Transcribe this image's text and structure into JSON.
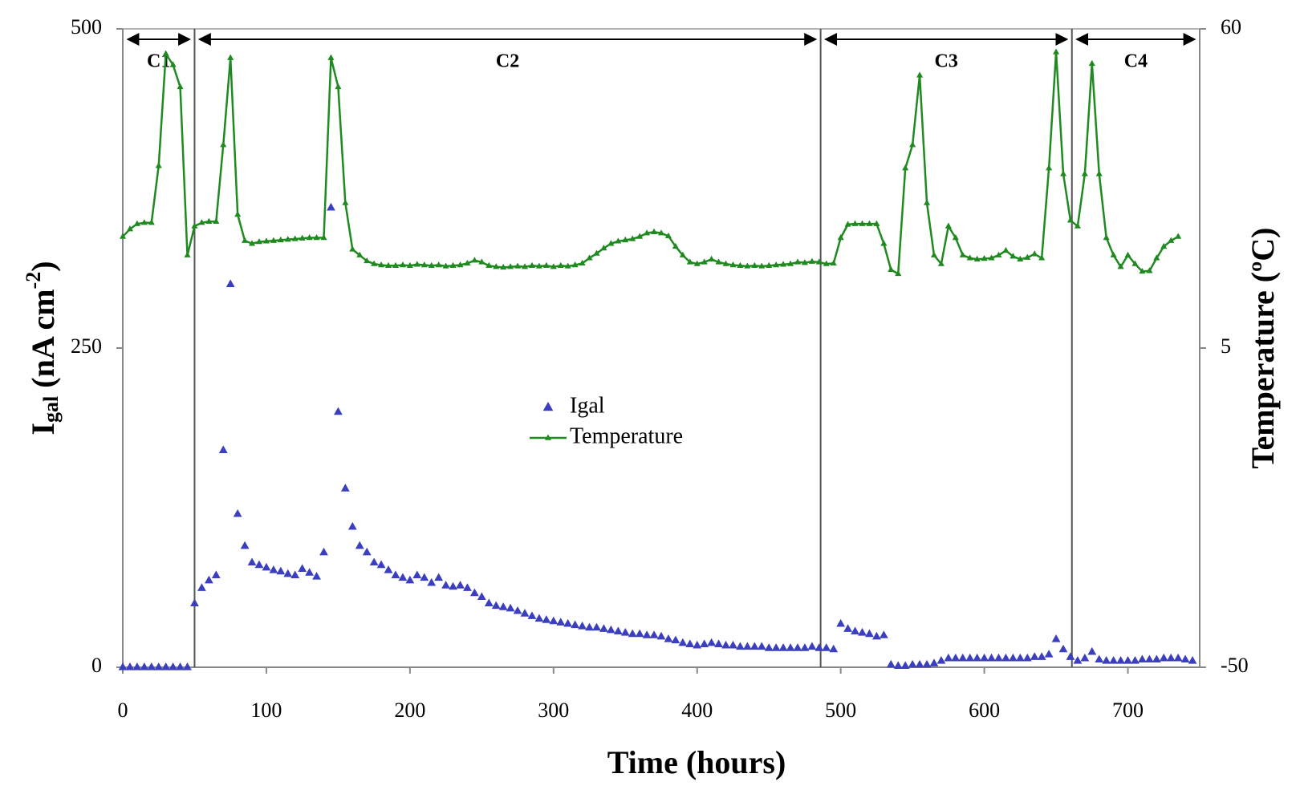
{
  "chart_data": {
    "type": "line",
    "x_label": "Time (hours)",
    "y_label": [
      "I",
      "gal",
      " (nA cm",
      "-2",
      ")"
    ],
    "y2_label": "Temperature (ºC)",
    "xlim": [
      0,
      750
    ],
    "xticks": [
      0,
      100,
      200,
      300,
      400,
      500,
      600,
      700
    ],
    "ylim": [
      0,
      500
    ],
    "yticks": [
      0,
      250,
      500
    ],
    "y2lim": [
      -50,
      60
    ],
    "y2ticks": [
      -50,
      5,
      60
    ],
    "legend": "center",
    "regions": [
      {
        "label": "C1",
        "start": 0,
        "end": 50
      },
      {
        "label": "C2",
        "start": 50,
        "end": 486
      },
      {
        "label": "C3",
        "start": 486,
        "end": 661
      },
      {
        "label": "C4",
        "start": 661,
        "end": 750
      }
    ],
    "x": [
      0,
      5,
      10,
      15,
      20,
      25,
      30,
      35,
      40,
      45,
      50,
      55,
      60,
      65,
      70,
      75,
      80,
      85,
      90,
      95,
      100,
      105,
      110,
      115,
      120,
      125,
      130,
      135,
      140,
      145,
      150,
      155,
      160,
      165,
      170,
      175,
      180,
      185,
      190,
      195,
      200,
      205,
      210,
      215,
      220,
      225,
      230,
      235,
      240,
      245,
      250,
      255,
      260,
      265,
      270,
      275,
      280,
      285,
      290,
      295,
      300,
      305,
      310,
      315,
      320,
      325,
      330,
      335,
      340,
      345,
      350,
      355,
      360,
      365,
      370,
      375,
      380,
      385,
      390,
      395,
      400,
      405,
      410,
      415,
      420,
      425,
      430,
      435,
      440,
      445,
      450,
      455,
      460,
      465,
      470,
      475,
      480,
      485,
      490,
      495,
      500,
      505,
      510,
      515,
      520,
      525,
      530,
      535,
      540,
      545,
      550,
      555,
      560,
      565,
      570,
      575,
      580,
      585,
      590,
      595,
      600,
      605,
      610,
      615,
      620,
      625,
      630,
      635,
      640,
      645,
      650,
      655,
      660,
      665,
      670,
      675,
      680,
      685,
      690,
      695,
      700,
      705,
      710,
      715,
      720,
      725,
      730,
      735,
      740,
      745
    ],
    "series": [
      {
        "name": "Igal",
        "color": "#3b3fbf",
        "marker": "triangle",
        "line": false,
        "values": [
          0,
          0,
          0,
          0,
          0,
          0,
          0,
          0,
          0,
          0,
          50,
          62,
          68,
          72,
          170,
          300,
          120,
          95,
          82,
          80,
          78,
          76,
          75,
          73,
          72,
          77,
          74,
          71,
          90,
          360,
          200,
          140,
          110,
          95,
          90,
          82,
          80,
          76,
          72,
          70,
          68,
          72,
          70,
          66,
          70,
          64,
          63,
          64,
          62,
          58,
          55,
          50,
          48,
          47,
          46,
          44,
          42,
          40,
          38,
          37,
          36,
          35,
          34,
          33,
          32,
          31,
          31,
          30,
          29,
          28,
          27,
          26,
          26,
          25,
          25,
          24,
          22,
          21,
          19,
          18,
          17,
          18,
          19,
          18,
          17,
          17,
          16,
          16,
          16,
          16,
          15,
          15,
          15,
          15,
          15,
          15,
          16,
          15,
          15,
          14,
          34,
          30,
          28,
          27,
          26,
          24,
          25,
          2,
          1,
          1,
          2,
          2,
          2,
          3,
          5,
          7,
          7,
          7,
          7,
          7,
          7,
          7,
          7,
          7,
          7,
          7,
          7,
          8,
          8,
          10,
          22,
          14,
          8,
          5,
          7,
          12,
          6,
          5,
          5,
          5,
          5,
          5,
          6,
          6,
          6,
          7,
          7,
          7,
          6,
          5
        ]
      },
      {
        "name": "Temperature",
        "color": "#1f8a1f",
        "marker": "triangle",
        "line": true,
        "axis": "y2",
        "values": [
          24.2,
          25.5,
          26.4,
          26.6,
          26.6,
          36.4,
          55.7,
          53.8,
          50,
          21,
          26,
          26.6,
          26.8,
          26.8,
          40,
          55,
          28,
          23.5,
          23.0,
          23.3,
          23.4,
          23.5,
          23.6,
          23.7,
          23.8,
          23.9,
          24,
          24,
          24,
          55,
          50,
          30,
          22,
          21,
          20,
          19.5,
          19.3,
          19.2,
          19.2,
          19.3,
          19.2,
          19.4,
          19.3,
          19.2,
          19.3,
          19.1,
          19.2,
          19.3,
          19.6,
          20.1,
          19.8,
          19.2,
          19,
          18.9,
          19,
          19.1,
          19,
          19.2,
          19.1,
          19.2,
          19,
          19.2,
          19.1,
          19.3,
          19.6,
          20.5,
          21.3,
          22.2,
          23,
          23.4,
          23.6,
          23.8,
          24.2,
          24.8,
          25,
          24.8,
          24.3,
          22.5,
          21,
          19.8,
          19.5,
          19.8,
          20.3,
          19.8,
          19.5,
          19.3,
          19.2,
          19.1,
          19.2,
          19.1,
          19.2,
          19.3,
          19.4,
          19.5,
          19.8,
          19.7,
          19.9,
          19.8,
          19.5,
          19.6,
          24,
          26.3,
          26.4,
          26.4,
          26.4,
          26.4,
          23,
          18.5,
          17.8,
          36,
          40,
          52,
          30,
          21,
          19.5,
          26,
          24,
          21,
          20.5,
          20.3,
          20.4,
          20.5,
          21,
          21.8,
          20.8,
          20.3,
          20.6,
          21.2,
          20.5,
          36,
          56,
          35,
          27,
          26,
          35,
          54,
          35,
          24,
          21,
          19,
          21,
          19.5,
          18.2,
          18.3,
          20.5,
          22.5,
          23.5,
          24.2,
          null,
          null
        ]
      }
    ]
  }
}
